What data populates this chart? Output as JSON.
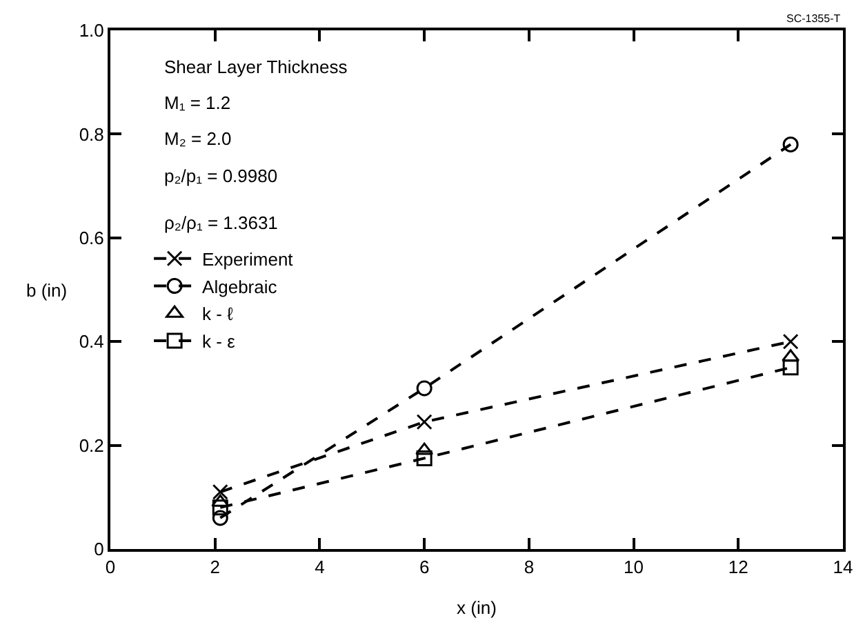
{
  "chart_data": {
    "type": "line",
    "xlabel": "x (in)",
    "ylabel": "b (in)",
    "xlim": [
      0,
      14
    ],
    "xticks": [
      0,
      2,
      4,
      6,
      8,
      10,
      12,
      14
    ],
    "ylim": [
      0,
      1
    ],
    "yticks": [
      0,
      0.2,
      0.4,
      0.6,
      0.8,
      {
        "value": 1,
        "label": "1.0"
      }
    ],
    "grid": false,
    "legend": "left",
    "annotations": [
      "SC-1355-T",
      "Shear Layer Thickness",
      "M₁ = 1.2",
      "M₂ = 2.0",
      "p₂/p₁ = 0.9980",
      "ρ₂/ρ₁ = 1.3631"
    ],
    "series": [
      {
        "name": "Experiment",
        "color": "#000000",
        "marker": "cross",
        "line_style": "dashed",
        "x": [
          2.1,
          6,
          13
        ],
        "values": [
          0.11,
          0.245,
          0.4
        ]
      },
      {
        "name": "Algebraic",
        "color": "#000000",
        "marker": "circle",
        "line_style": "dashed",
        "x": [
          2.1,
          6,
          13
        ],
        "values": [
          0.06,
          0.31,
          0.78
        ]
      },
      {
        "name": "k - ℓ",
        "type": "scatter",
        "color": "#000000",
        "marker": "triangle",
        "x": [
          2.1,
          6,
          13
        ],
        "values": [
          0.09,
          0.19,
          0.37
        ]
      },
      {
        "name": "k - ε",
        "color": "#000000",
        "marker": "square",
        "line_style": "dashed",
        "x": [
          2.1,
          6,
          13
        ],
        "values": [
          0.08,
          0.175,
          0.35
        ]
      }
    ]
  }
}
